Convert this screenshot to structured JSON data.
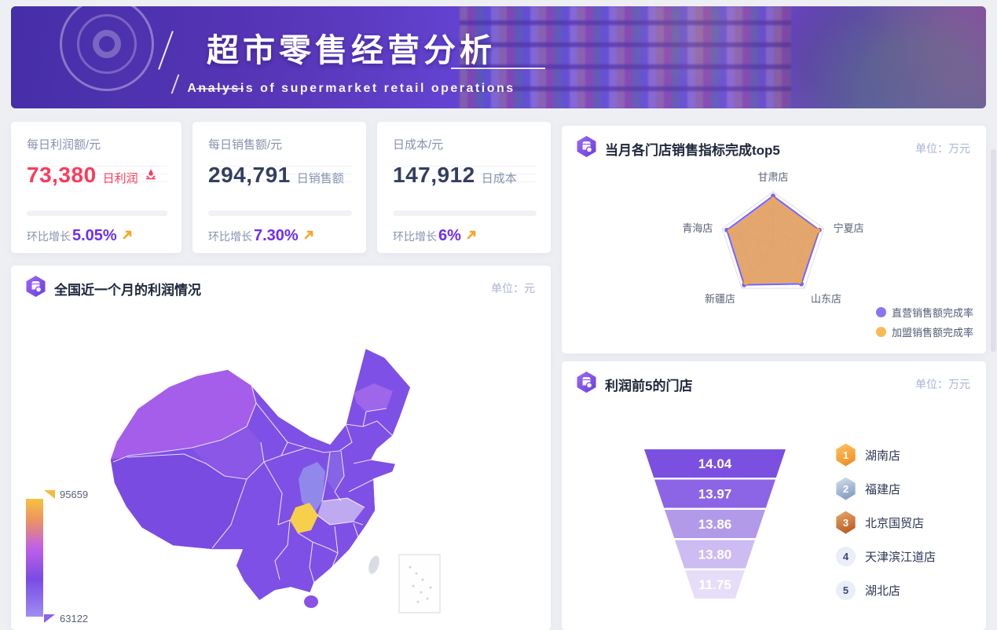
{
  "banner": {
    "title": "超市零售经营分析",
    "subtitle": "Analysis of supermarket retail operations"
  },
  "kpis": [
    {
      "title": "每日利润额/元",
      "value": "73,380",
      "value_label": "日利润",
      "growth_label": "环比增长",
      "growth": "5.05%",
      "accent": "#fb3b5c"
    },
    {
      "title": "每日销售额/元",
      "value": "294,791",
      "value_label": "日销售额",
      "growth_label": "环比增长",
      "growth": "7.30%",
      "accent": "#343e60"
    },
    {
      "title": "日成本/元",
      "value": "147,912",
      "value_label": "日成本",
      "growth_label": "环比增长",
      "growth": "6%",
      "accent": "#343e60"
    }
  ],
  "panels": {
    "radar": {
      "title": "当月各门店销售指标完成top5",
      "unit": "单位：万元"
    },
    "map": {
      "title": "全国近一个月的利润情况",
      "unit": "单位：元"
    },
    "funnel": {
      "title": "利润前5的门店",
      "unit": "单位：万元"
    }
  },
  "chart_data": [
    {
      "id": "radar",
      "type": "radar",
      "title": "当月各门店销售指标完成top5",
      "unit": "万元",
      "indicators": [
        "甘肃店",
        "宁夏店",
        "山东店",
        "新疆店",
        "青海店"
      ],
      "max": 100,
      "series": [
        {
          "name": "直营销售额完成率",
          "color": "#7c63f2",
          "fill": "rgba(124,99,242,0.55)",
          "values": [
            92,
            91,
            90,
            92,
            91
          ]
        },
        {
          "name": "加盟销售额完成率",
          "color": "#f3a73f",
          "fill": "rgba(240,165,70,0.78)",
          "values": [
            86,
            88,
            84,
            87,
            85
          ]
        }
      ],
      "legend_position": "right-bottom"
    },
    {
      "id": "map",
      "type": "choropleth",
      "title": "全国近一个月的利润情况",
      "unit": "元",
      "min": 63122,
      "max": 95659,
      "min_label": "63122",
      "max_label": "95659",
      "palette": [
        "#f6c23e",
        "#ec9460",
        "#c05fe9",
        "#7a4be4",
        "#a28df2"
      ],
      "highlight": {
        "region": "重庆",
        "color": "#f6cf4b"
      },
      "region_colors": {
        "base": "#7f50e5",
        "xinjiang": "#a55ee9",
        "tibet": "#7a4be0",
        "qinghai": "#8a57e6",
        "jilin": "#9e66e8",
        "shanxi": "#8664e6",
        "shaanxi": "#9188ec",
        "hubei": "#bfa9f0",
        "chongqing": "#f6cf4b",
        "hainan": "#8a50e8",
        "taiwan": "#d9dce3"
      }
    },
    {
      "id": "funnel",
      "type": "funnel",
      "title": "利润前5的门店",
      "unit": "万元",
      "items": [
        {
          "rank": "1",
          "store": "湖南店",
          "value": "14.04"
        },
        {
          "rank": "2",
          "store": "福建店",
          "value": "13.97"
        },
        {
          "rank": "3",
          "store": "北京国贸店",
          "value": "13.86"
        },
        {
          "rank": "4",
          "store": "天津滨江道店",
          "value": "13.80"
        },
        {
          "rank": "5",
          "store": "湖北店",
          "value": "11.75"
        }
      ],
      "colors": [
        "#7b50e0",
        "#8b65e6",
        "#b29ae9",
        "#ccbcf1",
        "#e6def8"
      ]
    }
  ]
}
